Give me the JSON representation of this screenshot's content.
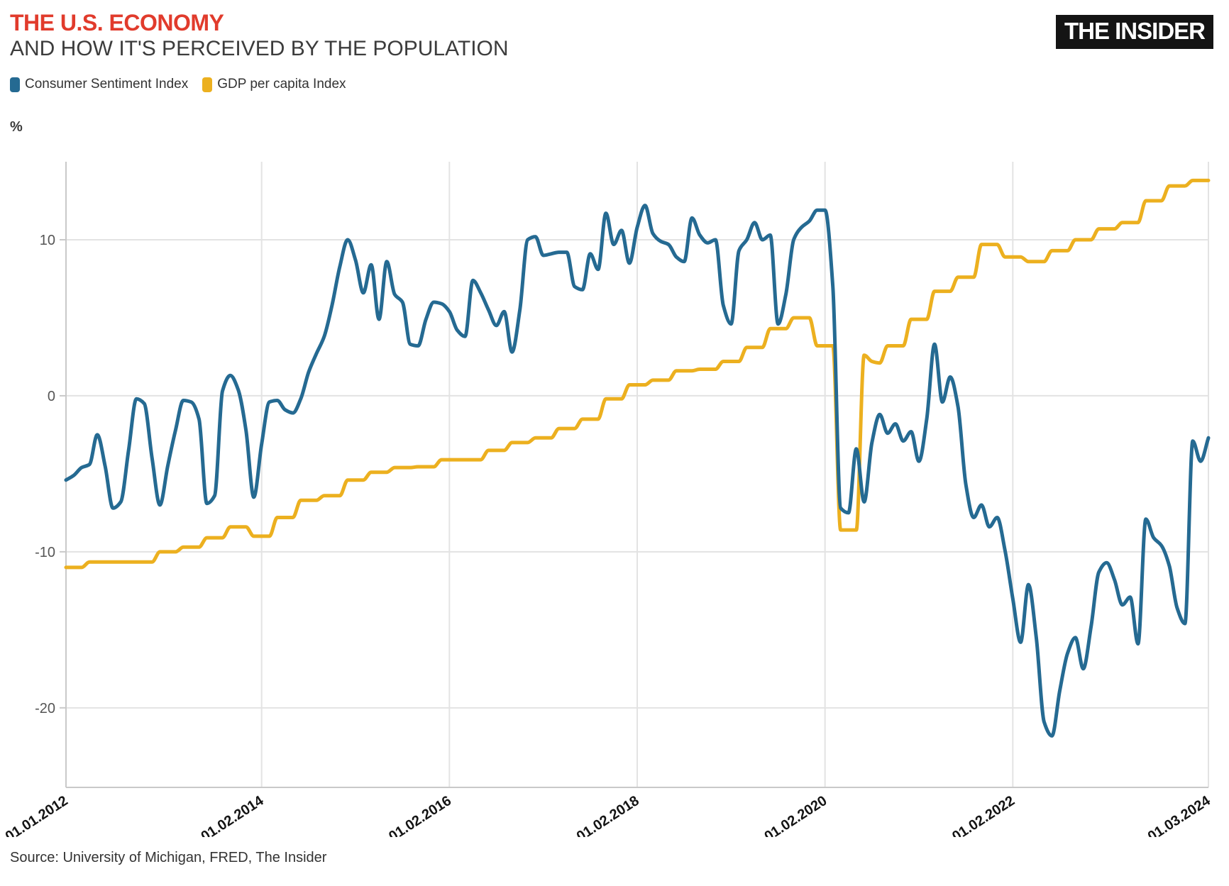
{
  "header": {
    "title": "THE U.S. ECONOMY",
    "subtitle": "AND HOW IT'S PERCEIVED BY THE POPULATION",
    "logo": "THE INSIDER"
  },
  "legend": [
    {
      "label": "Consumer Sentiment Index",
      "color": "#256a92"
    },
    {
      "label": "GDP per capita Index",
      "color": "#ecb01f"
    }
  ],
  "unit_label": "%",
  "source": "Source: University of Michigan, FRED, The Insider",
  "chart_data": {
    "type": "line",
    "title": "THE U.S. ECONOMY — AND HOW IT'S PERCEIVED BY THE POPULATION",
    "xlabel": "",
    "ylabel": "%",
    "x_start": "2012-01",
    "x_freq": "monthly",
    "n_points": 147,
    "x_tick_labels": [
      "01.01.2012",
      "01.02.2014",
      "01.02.2016",
      "01.02.2018",
      "01.02.2020",
      "01.02.2022",
      "01.03.2024"
    ],
    "x_tick_months": [
      0,
      25,
      49,
      73,
      97,
      121,
      146
    ],
    "y_ticks": [
      10,
      0,
      -10,
      -20
    ],
    "ylim": [
      -25.1,
      15.0
    ],
    "grid": true,
    "legend_position": "top-left",
    "series": [
      {
        "name": "Consumer Sentiment Index",
        "color": "#256a92",
        "values": [
          -5.4,
          -5.1,
          -4.6,
          -4.4,
          -2.5,
          -4.5,
          -7.2,
          -6.8,
          -3.5,
          -0.2,
          -0.5,
          -4.0,
          -7.0,
          -4.5,
          -2.2,
          -0.3,
          -0.4,
          -1.5,
          -6.9,
          -6.4,
          0.3,
          1.3,
          0.4,
          -2.2,
          -6.5,
          -3.1,
          -0.4,
          -0.3,
          -0.9,
          -1.1,
          -0.2,
          1.5,
          2.7,
          3.8,
          5.8,
          8.3,
          10.0,
          8.7,
          6.6,
          8.4,
          4.9,
          8.6,
          6.5,
          6.0,
          3.3,
          3.2,
          4.9,
          6.0,
          5.9,
          5.4,
          4.2,
          3.8,
          7.4,
          6.6,
          5.5,
          4.5,
          5.4,
          2.8,
          5.5,
          10.0,
          10.2,
          9.0,
          9.1,
          9.2,
          9.2,
          7.0,
          6.8,
          9.1,
          8.1,
          11.7,
          9.7,
          10.6,
          8.5,
          10.8,
          12.2,
          10.4,
          9.9,
          9.7,
          8.9,
          8.6,
          11.4,
          10.3,
          9.8,
          10.0,
          5.8,
          4.6,
          9.3,
          10.0,
          11.1,
          10.0,
          10.3,
          4.6,
          6.5,
          10.0,
          10.8,
          11.2,
          11.9,
          11.9,
          7.0,
          -7.2,
          -7.5,
          -3.4,
          -6.8,
          -3.0,
          -1.2,
          -2.4,
          -1.8,
          -2.9,
          -2.3,
          -4.2,
          -1.5,
          3.3,
          -0.4,
          1.2,
          -0.7,
          -5.7,
          -7.8,
          -7.0,
          -8.4,
          -7.8,
          -9.9,
          -13.0,
          -15.8,
          -12.1,
          -15.5,
          -20.9,
          -21.8,
          -18.9,
          -16.5,
          -15.5,
          -17.5,
          -14.8,
          -11.3,
          -10.7,
          -11.8,
          -13.4,
          -12.9,
          -15.9,
          -7.9,
          -9.1,
          -9.6,
          -10.9,
          -13.6,
          -14.6,
          -2.9,
          -4.2,
          -2.7
        ]
      },
      {
        "name": "GDP per capita Index",
        "color": "#ecb01f",
        "values": [
          -11.0,
          -11.0,
          -11.0,
          -10.65,
          -10.65,
          -10.65,
          -10.65,
          -10.65,
          -10.65,
          -10.65,
          -10.65,
          -10.65,
          -10.0,
          -10.0,
          -10.0,
          -9.7,
          -9.7,
          -9.7,
          -9.1,
          -9.1,
          -9.1,
          -8.4,
          -8.4,
          -8.4,
          -9.0,
          -9.0,
          -9.0,
          -7.8,
          -7.8,
          -7.8,
          -6.7,
          -6.7,
          -6.7,
          -6.4,
          -6.4,
          -6.4,
          -5.4,
          -5.4,
          -5.4,
          -4.9,
          -4.9,
          -4.9,
          -4.6,
          -4.6,
          -4.6,
          -4.55,
          -4.55,
          -4.55,
          -4.1,
          -4.1,
          -4.1,
          -4.1,
          -4.1,
          -4.1,
          -3.5,
          -3.5,
          -3.5,
          -3.0,
          -3.0,
          -3.0,
          -2.7,
          -2.7,
          -2.7,
          -2.1,
          -2.1,
          -2.1,
          -1.5,
          -1.5,
          -1.5,
          -0.2,
          -0.2,
          -0.2,
          0.7,
          0.7,
          0.7,
          1.0,
          1.0,
          1.0,
          1.6,
          1.6,
          1.6,
          1.7,
          1.7,
          1.7,
          2.2,
          2.2,
          2.2,
          3.1,
          3.1,
          3.1,
          4.3,
          4.3,
          4.3,
          5.0,
          5.0,
          5.0,
          3.2,
          3.2,
          3.2,
          -8.6,
          -8.6,
          -8.6,
          2.6,
          2.2,
          2.1,
          3.2,
          3.2,
          3.2,
          4.9,
          4.9,
          4.9,
          6.7,
          6.7,
          6.7,
          7.6,
          7.6,
          7.6,
          9.7,
          9.7,
          9.7,
          8.9,
          8.9,
          8.9,
          8.6,
          8.6,
          8.6,
          9.3,
          9.3,
          9.3,
          10.0,
          10.0,
          10.0,
          10.7,
          10.7,
          10.7,
          11.1,
          11.1,
          11.1,
          12.5,
          12.5,
          12.5,
          13.45,
          13.45,
          13.45,
          13.8,
          13.8,
          13.8
        ]
      }
    ]
  },
  "layout_colors": {
    "grid": "#e3e3e3",
    "spine": "#c9c9c9",
    "title_red": "#e13b2c",
    "logo_bg": "#141414"
  }
}
